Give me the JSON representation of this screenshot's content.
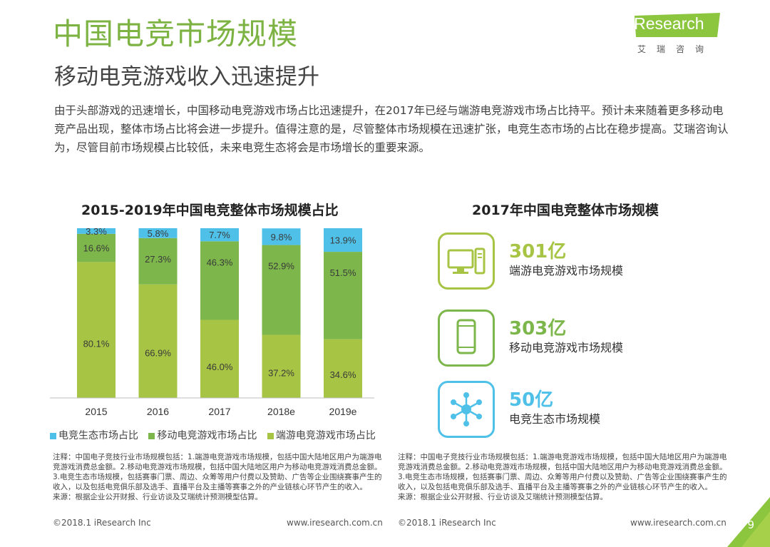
{
  "header": {
    "title": "中国电竞市场规模",
    "subtitle": "移动电竞游戏收入迅速提升",
    "logo_text": "iResearch",
    "logo_cn": "艾瑞咨询"
  },
  "intro": "由于头部游戏的迅速增长，中国移动电竞游戏市场占比迅速提升，在2017年已经与端游电竞游戏市场占比持平。预计未来随着更多移动电竞产品出现，整体市场占比将会进一步提升。值得注意的是，尽管整体市场规模在迅速扩张，电竞生态市场的占比在稳步提高。艾瑞咨询认为，尽管目前市场规模占比较低，未来电竞生态将会是市场增长的重要来源。",
  "chart_data": {
    "type": "bar",
    "stacked": true,
    "title": "2015-2019年中国电竞整体市场规模占比",
    "categories": [
      "2015",
      "2016",
      "2017",
      "2018e",
      "2019e"
    ],
    "ylim": [
      0,
      100
    ],
    "grid": false,
    "legend_position": "bottom-left",
    "series": [
      {
        "name": "端游电竞游戏市场占比",
        "values": [
          80.1,
          66.9,
          46.0,
          37.2,
          34.6
        ],
        "labels": [
          "80.1%",
          "66.9%",
          "46.0%",
          "37.2%",
          "34.6%"
        ],
        "color": "#a7c444"
      },
      {
        "name": "移动电竞游戏市场占比",
        "values": [
          16.6,
          27.3,
          46.3,
          52.9,
          51.5
        ],
        "labels": [
          "16.6%",
          "27.3%",
          "46.3%",
          "52.9%",
          "51.5%"
        ],
        "color": "#7db74b"
      },
      {
        "name": "电竞生态市场占比",
        "values": [
          3.3,
          5.8,
          7.7,
          9.8,
          13.9
        ],
        "labels": [
          "3.3%",
          "5.8%",
          "7.7%",
          "9.8%",
          "13.9%"
        ],
        "color": "#4fc1e9"
      }
    ],
    "legend_order": [
      "电竞生态市场占比",
      "移动电竞游戏市场占比",
      "端游电竞游戏市场占比"
    ]
  },
  "stats": {
    "title": "2017年中国电竞整体市场规模",
    "items": [
      {
        "value": "301亿",
        "label": "端游电竞游戏市场规模",
        "icon": "desktop-pc-icon",
        "color": "#a7c444"
      },
      {
        "value": "303亿",
        "label": "移动电竞游戏市场规模",
        "icon": "mobile-phone-icon",
        "color": "#7db74b"
      },
      {
        "value": "50亿",
        "label": "电竞生态市场规模",
        "icon": "network-node-icon",
        "color": "#4fc1e9"
      }
    ]
  },
  "notes": {
    "left": "注释：中国电子竞技行业市场规模包括：1.端游电竞游戏市场规模，包括中国大陆地区用户为端游电竞游戏消费总金额。2.移动电竞游戏市场规模，包括中国大陆地区用户为移动电竞游戏消费总金额。3.电竞生态市场规模，包括赛事门票、周边、众筹等用户付费以及赞助、广告等企业围绕赛事产生的收入，以及包括电竞俱乐部及选手、直播平台及主播等赛事之外的产业链核心环节产生的收入。",
    "left_source": "来源：根据企业公开财报、行业访谈及艾瑞统计预测模型估算。",
    "right": "注释：中国电子竞技行业市场规模包括：1.端游电竞游戏市场规模，包括中国大陆地区用户为端游电竞游戏消费总金额。2.移动电竞游戏市场规模，包括中国大陆地区用户为移动电竞游戏消费总金额。3.电竞生态市场规模，包括赛事门票、周边、众筹等用户付费以及赞助、广告等企业围绕赛事产生的收入，以及包括电竞俱乐部及选手、直播平台及主播等赛事之外的产业链核心环节产生的收入。",
    "right_source": "来源：根据企业公开财报、行业访谈及艾瑞统计预测模型估算。"
  },
  "footer": {
    "copyright": "©2018.1 iResearch Inc",
    "website": "www.iresearch.com.cn",
    "page": "9"
  },
  "colors": {
    "accent_green": "#7cb342",
    "light_green": "#a7c444",
    "mid_green": "#7db74b",
    "blue": "#4fc1e9"
  }
}
